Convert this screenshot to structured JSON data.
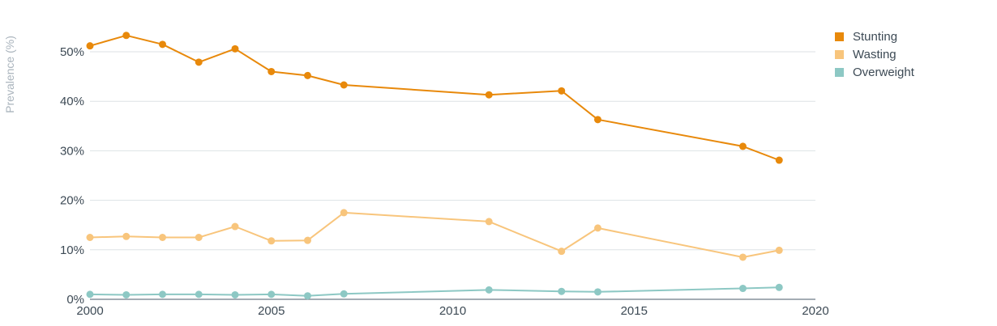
{
  "chart_data": {
    "type": "line",
    "title": "",
    "xlabel": "",
    "ylabel": "Prevalence (%)",
    "xlim": [
      2000,
      2020
    ],
    "ylim": [
      0,
      55
    ],
    "x_ticks": [
      "2000",
      "2005",
      "2010",
      "2015",
      "2020"
    ],
    "y_ticks": [
      "0%",
      "10%",
      "20%",
      "30%",
      "40%",
      "50%"
    ],
    "grid": true,
    "legend_position": "top-right",
    "series": [
      {
        "name": "Stunting",
        "color": "#e8890b",
        "x": [
          2000,
          2001,
          2002,
          2003,
          2004,
          2005,
          2006,
          2007,
          2011,
          2013,
          2014,
          2018,
          2019
        ],
        "values": [
          51.2,
          53.3,
          51.5,
          47.9,
          50.6,
          46.0,
          45.2,
          43.3,
          41.3,
          42.1,
          36.3,
          30.9,
          28.1
        ]
      },
      {
        "name": "Wasting",
        "color": "#f8c57c",
        "x": [
          2000,
          2001,
          2002,
          2003,
          2004,
          2005,
          2006,
          2007,
          2011,
          2013,
          2014,
          2018,
          2019
        ],
        "values": [
          12.5,
          12.7,
          12.5,
          12.5,
          14.7,
          11.8,
          11.9,
          17.5,
          15.7,
          9.7,
          14.4,
          8.5,
          9.9
        ]
      },
      {
        "name": "Overweight",
        "color": "#8dc8c4",
        "x": [
          2000,
          2001,
          2002,
          2003,
          2004,
          2005,
          2006,
          2007,
          2011,
          2013,
          2014,
          2018,
          2019
        ],
        "values": [
          1.0,
          0.9,
          1.0,
          1.0,
          0.9,
          1.0,
          0.7,
          1.1,
          1.9,
          1.6,
          1.5,
          2.2,
          2.4
        ]
      }
    ]
  }
}
